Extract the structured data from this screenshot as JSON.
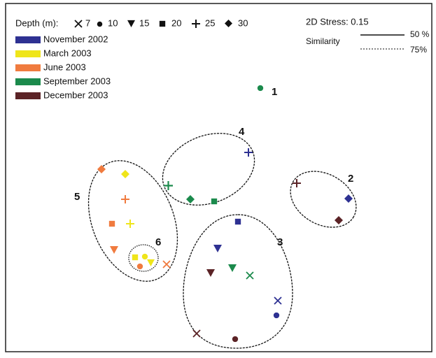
{
  "depth_legend": {
    "label": "Depth (m):",
    "items": [
      7,
      10,
      15,
      20,
      25,
      30
    ]
  },
  "time_legend": [
    {
      "name": "November 2002",
      "color": "#2e3192"
    },
    {
      "name": "March 2003",
      "color": "#efe51a"
    },
    {
      "name": "June 2003",
      "color": "#f07b3f"
    },
    {
      "name": "September 2003",
      "color": "#1b8a4c"
    },
    {
      "name": "December 2003",
      "color": "#5b2326"
    }
  ],
  "stress": "2D Stress: 0.15",
  "similarity": {
    "label": "Similarity",
    "solid": "50 %",
    "dotted": "75%"
  },
  "clusters": [
    "1",
    "2",
    "3",
    "4",
    "5",
    "6"
  ]
}
